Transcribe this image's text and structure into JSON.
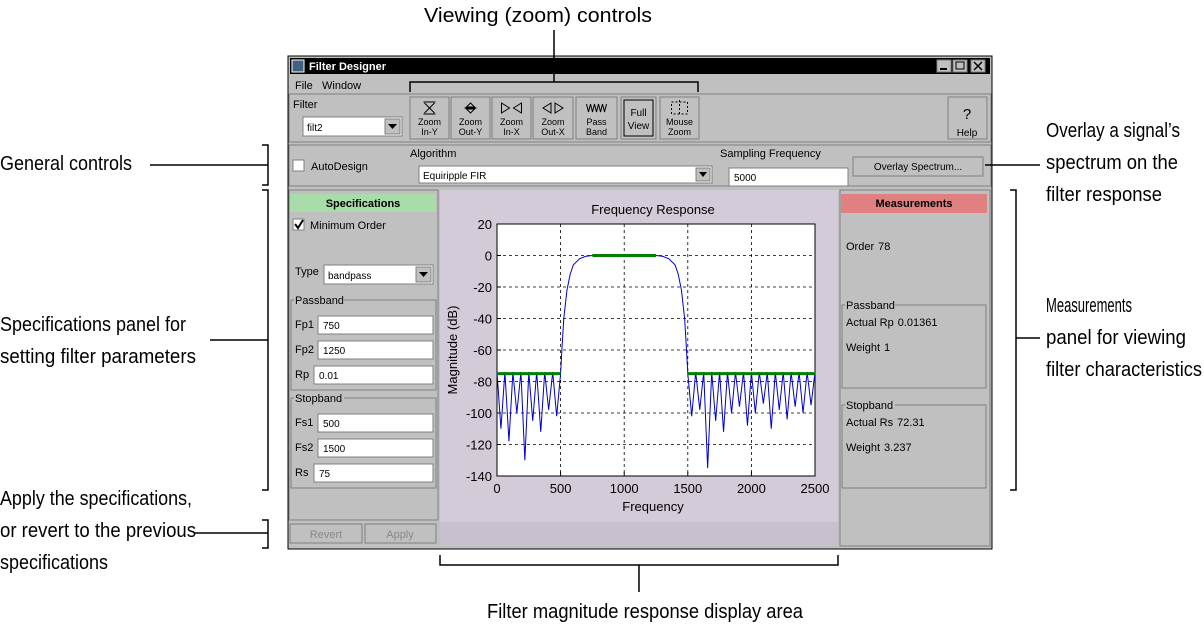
{
  "window": {
    "title": "Filter Designer",
    "menu": [
      "File",
      "Window"
    ]
  },
  "toolbar": {
    "filter_label": "Filter",
    "filter_value": "filt2",
    "buttons": [
      [
        "Zoom",
        "In-Y"
      ],
      [
        "Zoom",
        "Out-Y"
      ],
      [
        "Zoom",
        "In-X"
      ],
      [
        "Zoom",
        "Out-X"
      ],
      [
        "Pass",
        "Band"
      ],
      [
        "Full",
        "View"
      ],
      [
        "Mouse",
        "Zoom"
      ]
    ],
    "help": [
      "?",
      "Help"
    ]
  },
  "controls": {
    "autodesign": "AutoDesign",
    "algorithm_label": "Algorithm",
    "algorithm": "Equiripple FIR",
    "fs_label": "Sampling Frequency",
    "fs": 5000,
    "overlay": "Overlay Spectrum..."
  },
  "specifications": {
    "header": "Specifications",
    "minimum_order": "Minimum Order",
    "type_label": "Type",
    "type": "bandpass",
    "passband": {
      "title": "Passband",
      "fields": [
        {
          "label": "Fp1",
          "value": 750
        },
        {
          "label": "Fp2",
          "value": 1250
        },
        {
          "label": "Rp",
          "value": 0.01
        }
      ]
    },
    "stopband": {
      "title": "Stopband",
      "fields": [
        {
          "label": "Fs1",
          "value": 500
        },
        {
          "label": "Fs2",
          "value": 1500
        },
        {
          "label": "Rs",
          "value": 75
        }
      ]
    },
    "revert": "Revert",
    "apply": "Apply"
  },
  "measurements": {
    "header": "Measurements",
    "order": {
      "label": "Order",
      "value": 78
    },
    "passband": {
      "title": "Passband",
      "fields": [
        {
          "label": "Actual Rp",
          "value": 0.01361
        },
        {
          "label": "Weight",
          "value": 1
        }
      ]
    },
    "stopband": {
      "title": "Stopband",
      "fields": [
        {
          "label": "Actual Rs",
          "value": 72.31
        },
        {
          "label": "Weight",
          "value": 3.237
        }
      ]
    }
  },
  "annotations": {
    "viewing": [
      "Viewing (zoom) controls"
    ],
    "general": [
      "General controls"
    ],
    "overlay": [
      "Overlay a signal’s",
      "spectrum on the",
      "filter response"
    ],
    "specifications": [
      "Specifications panel for",
      "setting filter parameters"
    ],
    "measurements": [
      "Measurements",
      "panel for viewing",
      "filter characteristics"
    ],
    "apply": [
      "Apply the specifications,",
      "or revert to the previous",
      "specifications"
    ],
    "display": [
      "Filter magnitude response display area"
    ]
  },
  "chart_data": {
    "type": "line",
    "title": "Frequency Response",
    "x_label": "Frequency",
    "y_label": "Magnitude (dB)",
    "x": [
      0,
      31,
      62,
      94,
      125,
      156,
      188,
      219,
      250,
      281,
      312,
      344,
      375,
      406,
      438,
      469,
      500,
      510,
      525,
      550,
      575,
      600,
      650,
      700,
      750,
      1000,
      1250,
      1300,
      1350,
      1400,
      1425,
      1450,
      1475,
      1490,
      1500,
      1531,
      1562,
      1594,
      1625,
      1656,
      1688,
      1719,
      1750,
      1781,
      1812,
      1844,
      1875,
      1906,
      1938,
      1969,
      2000,
      2031,
      2062,
      2094,
      2125,
      2156,
      2188,
      2219,
      2250,
      2281,
      2312,
      2344,
      2375,
      2406,
      2438,
      2469,
      2500
    ],
    "series": [
      {
        "color": "#0000cc",
        "values": [
          -74,
          -110,
          -74,
          -118,
          -74,
          -100,
          -74,
          -130,
          -74,
          -105,
          -74,
          -112,
          -74,
          -98,
          -74,
          -102,
          -75,
          -60,
          -40,
          -22,
          -12,
          -6,
          -2,
          -0.5,
          0,
          0,
          0,
          -0.5,
          -2,
          -6,
          -12,
          -22,
          -40,
          -60,
          -75,
          -102,
          -74,
          -98,
          -74,
          -135,
          -74,
          -105,
          -74,
          -112,
          -74,
          -100,
          -74,
          -96,
          -74,
          -108,
          -74,
          -100,
          -74,
          -94,
          -74,
          -110,
          -74,
          -98,
          -74,
          -104,
          -74,
          -96,
          -74,
          -100,
          -74,
          -95,
          -74
        ]
      },
      {
        "color": "#008000",
        "values": [
          -75,
          -75,
          -75,
          -75,
          -75,
          -75,
          -75,
          -75,
          -75,
          -75,
          -75,
          -75,
          -75,
          -75,
          -75,
          -75,
          -75,
          null,
          null,
          null,
          null,
          null,
          null,
          null,
          0,
          0,
          0,
          null,
          null,
          null,
          null,
          null,
          null,
          null,
          -75,
          -75,
          -75,
          -75,
          -75,
          -75,
          -75,
          -75,
          -75,
          -75,
          -75,
          -75,
          -75,
          -75,
          -75,
          -75,
          -75,
          -75,
          -75,
          -75,
          -75,
          -75,
          -75,
          -75,
          -75,
          -75,
          -75,
          -75,
          -75,
          -75,
          -75,
          -75,
          -75
        ]
      }
    ],
    "xlim": [
      0,
      2500
    ],
    "ylim": [
      -140,
      20
    ],
    "xticks": [
      0,
      500,
      1000,
      1500,
      2000,
      2500
    ],
    "yticks": [
      20,
      0,
      -20,
      -40,
      -60,
      -80,
      -100,
      -120,
      -140
    ],
    "grid": true
  }
}
